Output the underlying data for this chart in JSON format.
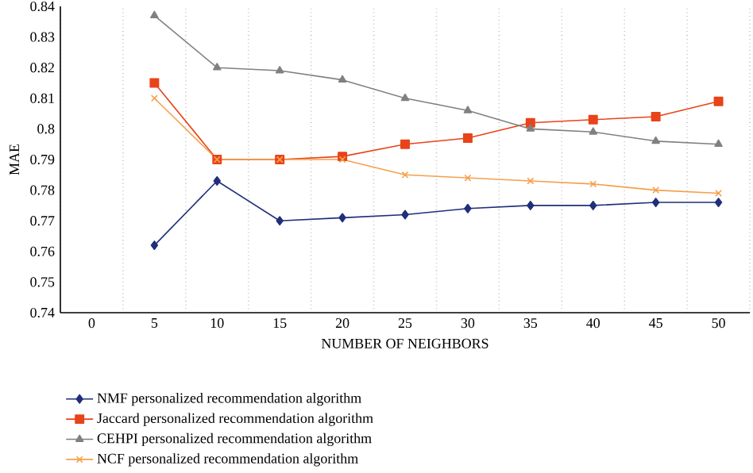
{
  "chart_data": {
    "type": "line",
    "xlabel": "NUMBER OF NEIGHBORS",
    "ylabel": "MAE",
    "categories": [
      "0",
      "5",
      "10",
      "15",
      "20",
      "25",
      "30",
      "35",
      "40",
      "45",
      "50"
    ],
    "series": [
      {
        "name": "NMF personalized recommendation algorithm",
        "color": "#1f2f7a",
        "marker": "diamond",
        "values": [
          null,
          0.762,
          0.783,
          0.77,
          0.771,
          0.772,
          0.774,
          0.775,
          0.775,
          0.776,
          0.776
        ]
      },
      {
        "name": "Jaccard personalized recommendation algorithm",
        "color": "#e8431a",
        "marker": "square",
        "values": [
          null,
          0.815,
          0.79,
          0.79,
          0.791,
          0.795,
          0.797,
          0.802,
          0.803,
          0.804,
          0.809
        ]
      },
      {
        "name": "CEHPI personalized recommendation algorithm",
        "color": "#808080",
        "marker": "triangle",
        "values": [
          null,
          0.837,
          0.82,
          0.819,
          0.816,
          0.81,
          0.806,
          0.8,
          0.799,
          0.796,
          0.795
        ]
      },
      {
        "name": "NCF personalized recommendation algorithm",
        "color": "#f5a04a",
        "marker": "cross",
        "values": [
          null,
          0.81,
          0.79,
          0.79,
          0.79,
          0.785,
          0.784,
          0.783,
          0.782,
          0.78,
          0.779
        ]
      }
    ],
    "ylim": [
      0.74,
      0.84
    ],
    "yticks": [
      0.74,
      0.75,
      0.76,
      0.77,
      0.78,
      0.79,
      0.8,
      0.81,
      0.82,
      0.83,
      0.84
    ],
    "grid": "x",
    "legend": "bottom",
    "line_style": "solid"
  }
}
